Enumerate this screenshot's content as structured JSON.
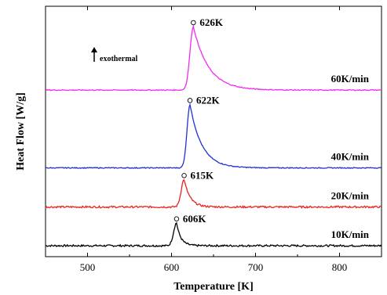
{
  "chart_data": {
    "type": "line",
    "xlabel": "Temperature [K]",
    "ylabel": "Heat Flow [W/g]",
    "xlim": [
      450,
      850
    ],
    "xticks": [
      500,
      600,
      700,
      800
    ],
    "xtick_labels": [
      "500",
      "600",
      "700",
      "800"
    ],
    "y_tick_labels": false,
    "annotation": "exothermal",
    "series": [
      {
        "name": "10K/min",
        "color": "#000000",
        "baseline": 0.0,
        "peak_x": 606,
        "peak_label": "606K",
        "height": 0.75,
        "rise": 3.5,
        "decay": 5,
        "noise": 0.03
      },
      {
        "name": "20K/min",
        "color": "#e8241f",
        "baseline": 1.27,
        "peak_x": 615,
        "peak_label": "615K",
        "height": 0.9,
        "rise": 3.5,
        "decay": 7,
        "noise": 0.03
      },
      {
        "name": "40K/min",
        "color": "#2330d6",
        "baseline": 2.55,
        "peak_x": 622,
        "peak_label": "622K",
        "height": 2.08,
        "rise": 3.5,
        "decay": 14,
        "noise": 0.015
      },
      {
        "name": "60K/min",
        "color": "#f02cf0",
        "baseline": 5.1,
        "peak_x": 626,
        "peak_label": "626K",
        "height": 2.08,
        "rise": 4,
        "decay": 18,
        "noise": 0.015
      }
    ]
  }
}
